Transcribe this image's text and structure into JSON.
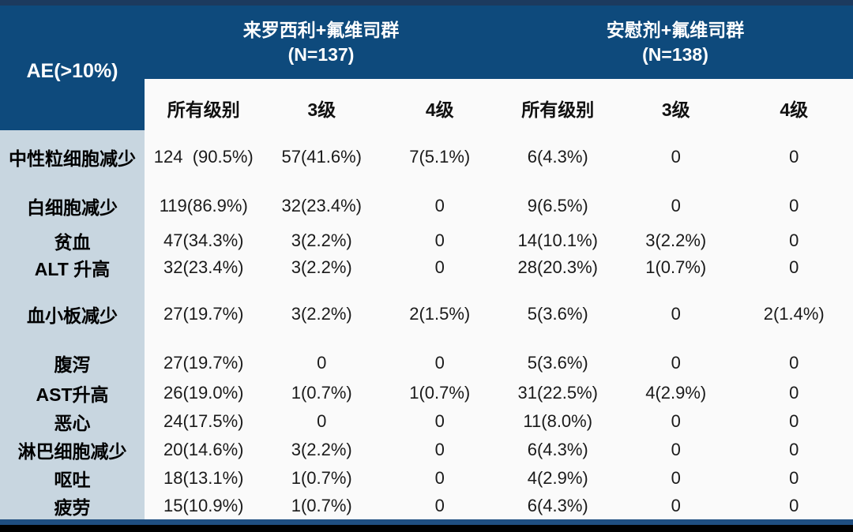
{
  "table": {
    "corner_label": "AE(>10%)",
    "groups": [
      {
        "name": "来罗西利+氟维司群",
        "n": "(N=137)"
      },
      {
        "name": "安慰剂+氟维司群",
        "n": "(N=138)"
      }
    ],
    "sub_headers": [
      "所有级别",
      "3级",
      "4级",
      "所有级别",
      "3级",
      "4级"
    ],
    "rows": [
      {
        "label": "中性粒细胞减少",
        "values": [
          "124  (90.5%)",
          "57(41.6%)",
          "7(5.1%)",
          "6(4.3%)",
          "0",
          "0"
        ]
      },
      {
        "label": "白细胞减少",
        "values": [
          "119(86.9%)",
          "32(23.4%)",
          "0",
          "9(6.5%)",
          "0",
          "0"
        ]
      },
      {
        "label": "贫血",
        "values": [
          "47(34.3%)",
          "3(2.2%)",
          "0",
          "14(10.1%)",
          "3(2.2%)",
          "0"
        ]
      },
      {
        "label": "ALT 升高",
        "values": [
          "32(23.4%)",
          "3(2.2%)",
          "0",
          "28(20.3%)",
          "1(0.7%)",
          "0"
        ]
      },
      {
        "label": "血小板减少",
        "values": [
          "27(19.7%)",
          "3(2.2%)",
          "2(1.5%)",
          "5(3.6%)",
          "0",
          "2(1.4%)"
        ]
      },
      {
        "label": "腹泻",
        "values": [
          "27(19.7%)",
          "0",
          "0",
          "5(3.6%)",
          "0",
          "0"
        ]
      },
      {
        "label": "AST升高",
        "values": [
          "26(19.0%)",
          "1(0.7%)",
          "1(0.7%)",
          "31(22.5%)",
          "4(2.9%)",
          "0"
        ]
      },
      {
        "label": "恶心",
        "values": [
          "24(17.5%)",
          "0",
          "0",
          "11(8.0%)",
          "0",
          "0"
        ]
      },
      {
        "label": "淋巴细胞减少",
        "values": [
          "20(14.6%)",
          "3(2.2%)",
          "0",
          "6(4.3%)",
          "0",
          "0"
        ]
      },
      {
        "label": "呕吐",
        "values": [
          "18(13.1%)",
          "1(0.7%)",
          "0",
          "4(2.9%)",
          "0",
          "0"
        ]
      },
      {
        "label": "疲劳",
        "values": [
          "15(10.9%)",
          "1(0.7%)",
          "0",
          "6(4.3%)",
          "0",
          "0"
        ]
      }
    ]
  },
  "colors": {
    "header_blue": "#0e4a7c",
    "top_strip": "#1c3a5e",
    "label_column": "#c8d6e0",
    "table_bg": "#fafafa",
    "bottom_line": "#1f4e80",
    "bottom_bar": "#000000"
  }
}
